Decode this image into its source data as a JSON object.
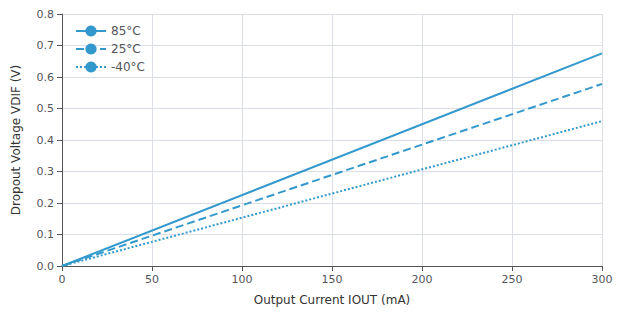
{
  "chart_data": {
    "type": "line",
    "title": "",
    "xlabel": "Output Current IOUT (mA)",
    "ylabel": "Dropout Voltage VDIF (V)",
    "xlim": [
      0,
      300
    ],
    "ylim": [
      0,
      0.8
    ],
    "xticks": [
      0,
      50,
      100,
      150,
      200,
      250,
      300
    ],
    "yticks": [
      {
        "value": 0,
        "label": "0.0"
      },
      0.1,
      0.2,
      0.3,
      0.4,
      0.5,
      0.6,
      0.7,
      0.8
    ],
    "color": "#3399CC",
    "grid": true,
    "legend": "upper left",
    "series": [
      {
        "name": "85°C",
        "line_style": "solid",
        "x": [
          0,
          300
        ],
        "values": [
          0,
          0.675
        ]
      },
      {
        "name": "25°C",
        "line_style": "dashed",
        "x": [
          0,
          300
        ],
        "values": [
          0,
          0.578
        ]
      },
      {
        "name": "-40°C",
        "line_style": "dotted",
        "x": [
          0,
          300
        ],
        "values": [
          0,
          0.46
        ]
      }
    ]
  }
}
